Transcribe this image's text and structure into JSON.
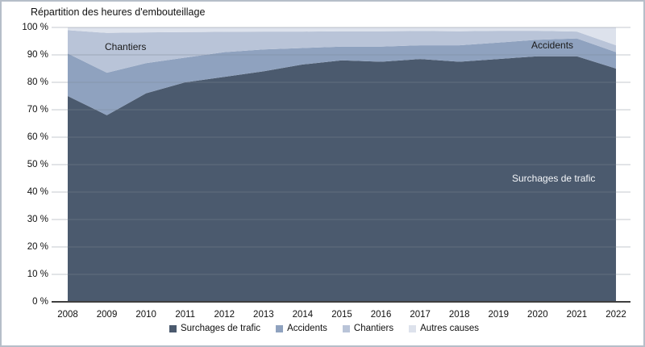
{
  "chart_data": {
    "type": "area",
    "stacked": true,
    "percent_stacked": true,
    "title": "Répartition des heures d'embouteillage",
    "x": [
      "2008",
      "2009",
      "2010",
      "2011",
      "2012",
      "2013",
      "2014",
      "2015",
      "2016",
      "2017",
      "2018",
      "2019",
      "2020",
      "2021",
      "2022"
    ],
    "series": [
      {
        "name": "Surchages de trafic",
        "color": "#4b5a6e",
        "values": [
          75,
          68,
          76,
          80,
          82,
          84,
          86.5,
          88,
          87.5,
          88.5,
          87.5,
          88.5,
          89.5,
          89.5,
          85
        ]
      },
      {
        "name": "Accidents",
        "color": "#8fa2bf",
        "values": [
          15.5,
          15.5,
          11,
          9,
          9,
          8,
          6,
          5,
          5.5,
          5,
          6,
          6,
          6,
          6.5,
          6
        ]
      },
      {
        "name": "Chantiers",
        "color": "#b9c4d8",
        "values": [
          8.5,
          14.5,
          11.2,
          9.3,
          7.4,
          6.5,
          6,
          5.6,
          5.6,
          5.2,
          5.1,
          4.3,
          3.3,
          2.5,
          2.5
        ]
      },
      {
        "name": "Autres causes",
        "color": "#dde2ec",
        "values": [
          1,
          2,
          1.8,
          1.7,
          1.6,
          1.5,
          1.5,
          1.4,
          1.4,
          1.3,
          1.4,
          1.2,
          1.2,
          1.5,
          6.5
        ]
      }
    ],
    "ylim": [
      0,
      100
    ],
    "y_ticks": [
      "100 %",
      "90 %",
      "80 %",
      "70 %",
      "60 %",
      "50 %",
      "40 %",
      "30 %",
      "20 %",
      "10 %",
      "0 %"
    ],
    "grid": true,
    "legend_position": "bottom",
    "annotations": [
      {
        "id": "chantiers",
        "text": "Chantiers"
      },
      {
        "id": "accidents",
        "text": "Accidents"
      },
      {
        "id": "surcharges",
        "text": "Surchages de trafic"
      }
    ],
    "colors": {
      "axis_line": "#3f3f3f",
      "gridline": "#7d8694",
      "border": "#b6bec9"
    }
  }
}
